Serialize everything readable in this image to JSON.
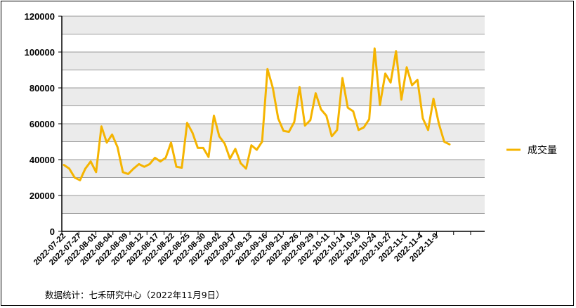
{
  "source_note": "数据统计：七禾研究中心（2022年11月9日）",
  "colors": {
    "series": "#F5B400",
    "band": "#EBEBEB",
    "grid": "#9A9A9A",
    "axis": "#000000"
  },
  "chart_data": {
    "type": "line",
    "ylim": [
      0,
      120000
    ],
    "yticks": [
      0,
      20000,
      40000,
      60000,
      80000,
      100000,
      120000
    ],
    "ytick_labels": [
      "0",
      "20000",
      "40000",
      "60000",
      "80000",
      "100000",
      "120000"
    ],
    "grid": true,
    "legend_position": "right",
    "x_tick_labels": [
      "2022-07-22",
      "2022-07-27",
      "2022-08-01",
      "2022-08-04",
      "2022-08-09",
      "2022-08-12",
      "2022-08-17",
      "2022-08-22",
      "2022-08-25",
      "2022-08-30",
      "2022-09-02",
      "2022-09-07",
      "2022-09-13",
      "2022-09-16",
      "2022-09-21",
      "2022-09-26",
      "2022-09-29",
      "2022-10-11",
      "2022-10-14",
      "2022-10-19",
      "2022-10-24",
      "2022-10-27",
      "2022-11-1",
      "2022-11-4",
      "2022-11-9"
    ],
    "series": [
      {
        "name": "成交量",
        "values": [
          37000,
          35000,
          30000,
          28500,
          35000,
          39000,
          33000,
          58500,
          49500,
          54000,
          47000,
          33000,
          32000,
          35000,
          37500,
          36000,
          37500,
          41000,
          39000,
          41000,
          49500,
          36000,
          35500,
          60500,
          55000,
          46500,
          46500,
          41500,
          64500,
          53000,
          49000,
          40500,
          46000,
          38000,
          35000,
          48000,
          45500,
          50000,
          90500,
          80000,
          63000,
          56000,
          55500,
          61000,
          80500,
          59000,
          62000,
          77000,
          68000,
          64500,
          53000,
          56500,
          85500,
          69000,
          67000,
          56500,
          58000,
          62500,
          102000,
          70500,
          88000,
          83000,
          100500,
          73500,
          91500,
          81500,
          84500,
          63000,
          56500,
          74000,
          60000,
          50000,
          48500
        ]
      }
    ]
  }
}
